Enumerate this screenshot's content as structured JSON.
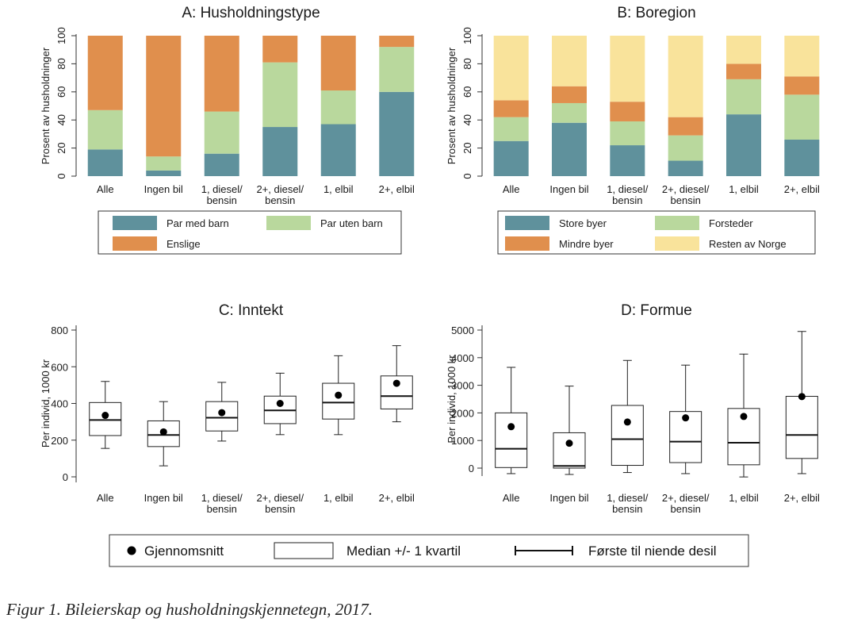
{
  "chart_data": [
    {
      "type": "bar",
      "stacked": true,
      "title": "A: Husholdningstype",
      "ylabel": "Prosent av husholdninger",
      "ylim": [
        0,
        100
      ],
      "yticks": [
        0,
        20,
        40,
        60,
        80,
        100
      ],
      "categories": [
        [
          "Alle"
        ],
        [
          "Ingen bil"
        ],
        [
          "1, diesel/",
          "bensin"
        ],
        [
          "2+, diesel/",
          "bensin"
        ],
        [
          "1, elbil"
        ],
        [
          "2+, elbil"
        ]
      ],
      "series": [
        {
          "name": "Par med barn",
          "color": "#5f919c",
          "values": [
            19,
            4,
            16,
            35,
            37,
            60
          ]
        },
        {
          "name": "Par uten barn",
          "color": "#b9d89d",
          "values": [
            28,
            10,
            30,
            46,
            24,
            32
          ]
        },
        {
          "name": "Enslige",
          "color": "#e08f4d",
          "values": [
            53,
            86,
            54,
            19,
            39,
            8
          ]
        }
      ]
    },
    {
      "type": "bar",
      "stacked": true,
      "title": "B: Boregion",
      "ylabel": "Prosent av husholdninger",
      "ylim": [
        0,
        100
      ],
      "yticks": [
        0,
        20,
        40,
        60,
        80,
        100
      ],
      "categories": [
        [
          "Alle"
        ],
        [
          "Ingen bil"
        ],
        [
          "1, diesel/",
          "bensin"
        ],
        [
          "2+, diesel/",
          "bensin"
        ],
        [
          "1, elbil"
        ],
        [
          "2+, elbil"
        ]
      ],
      "series": [
        {
          "name": "Store byer",
          "color": "#5f919c",
          "values": [
            25,
            38,
            22,
            11,
            44,
            26
          ]
        },
        {
          "name": "Forsteder",
          "color": "#b9d89d",
          "values": [
            17,
            14,
            17,
            18,
            25,
            32
          ]
        },
        {
          "name": "Mindre byer",
          "color": "#e08f4d",
          "values": [
            12,
            12,
            14,
            13,
            11,
            13
          ]
        },
        {
          "name": "Resten av Norge",
          "color": "#f9e39b",
          "values": [
            46,
            36,
            47,
            58,
            20,
            29
          ]
        }
      ]
    },
    {
      "type": "box",
      "title": "C: Inntekt",
      "ylabel": "Per individ, 1000 kr",
      "ylim": [
        -30,
        830
      ],
      "yticks": [
        0,
        200,
        400,
        600,
        800
      ],
      "categories": [
        [
          "Alle"
        ],
        [
          "Ingen bil"
        ],
        [
          "1, diesel/",
          "bensin"
        ],
        [
          "2+, diesel/",
          "bensin"
        ],
        [
          "1, elbil"
        ],
        [
          "2+, elbil"
        ]
      ],
      "boxes": [
        {
          "p10": 155,
          "q1": 225,
          "median": 310,
          "q3": 405,
          "p90": 520,
          "mean": 335
        },
        {
          "p10": 60,
          "q1": 165,
          "median": 228,
          "q3": 305,
          "p90": 410,
          "mean": 245
        },
        {
          "p10": 195,
          "q1": 250,
          "median": 322,
          "q3": 410,
          "p90": 515,
          "mean": 350
        },
        {
          "p10": 230,
          "q1": 290,
          "median": 362,
          "q3": 440,
          "p90": 565,
          "mean": 400
        },
        {
          "p10": 230,
          "q1": 315,
          "median": 405,
          "q3": 510,
          "p90": 660,
          "mean": 445
        },
        {
          "p10": 300,
          "q1": 370,
          "median": 440,
          "q3": 550,
          "p90": 715,
          "mean": 510
        }
      ]
    },
    {
      "type": "box",
      "title": "D: Formue",
      "ylabel": "Per individ, 1000 kr",
      "ylim": [
        -450,
        5200
      ],
      "yticks": [
        0,
        1000,
        2000,
        3000,
        4000,
        5000
      ],
      "categories": [
        [
          "Alle"
        ],
        [
          "Ingen bil"
        ],
        [
          "1, diesel/",
          "bensin"
        ],
        [
          "2+, diesel/",
          "bensin"
        ],
        [
          "1, elbil"
        ],
        [
          "2+, elbil"
        ]
      ],
      "boxes": [
        {
          "p10": -200,
          "q1": 20,
          "median": 700,
          "q3": 2000,
          "p90": 3650,
          "mean": 1500
        },
        {
          "p10": -230,
          "q1": 0,
          "median": 80,
          "q3": 1280,
          "p90": 2970,
          "mean": 900
        },
        {
          "p10": -160,
          "q1": 100,
          "median": 1050,
          "q3": 2270,
          "p90": 3900,
          "mean": 1670
        },
        {
          "p10": -200,
          "q1": 200,
          "median": 960,
          "q3": 2050,
          "p90": 3730,
          "mean": 1820
        },
        {
          "p10": -320,
          "q1": 120,
          "median": 920,
          "q3": 2160,
          "p90": 4130,
          "mean": 1870
        },
        {
          "p10": -200,
          "q1": 350,
          "median": 1200,
          "q3": 2600,
          "p90": 4950,
          "mean": 2590
        }
      ]
    }
  ],
  "box_legend": {
    "mean_label": "Gjennomsnitt",
    "box_label": "Median +/- 1 kvartil",
    "whisker_label": "Første til niende desil"
  },
  "caption": "Figur 1. Bileierskap og husholdningskjennetegn, 2017."
}
